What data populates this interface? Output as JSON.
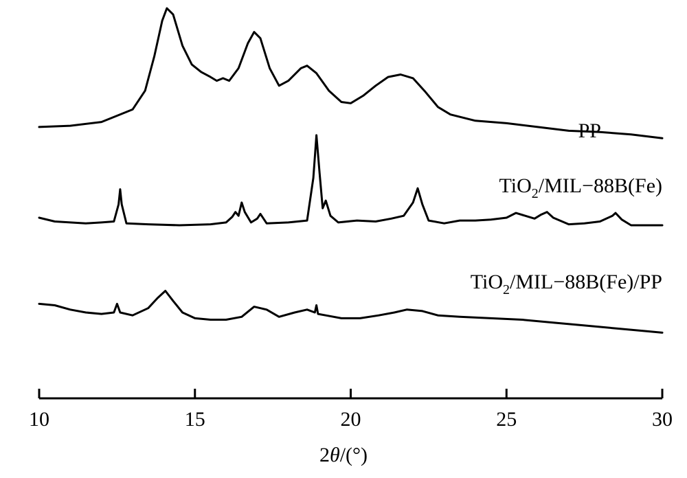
{
  "chart_data": {
    "type": "line",
    "xlabel_prefix": "2",
    "xlabel_symbol": "θ",
    "xlabel_suffix": "/(°)",
    "xlim": [
      10,
      30
    ],
    "x_ticks": [
      10,
      15,
      20,
      25,
      30
    ],
    "y_axis_shown": false,
    "grid": false,
    "legend": "none",
    "series": [
      {
        "name": "PP",
        "label_parts": {
          "pre": "PP",
          "sub": "",
          "post": ""
        },
        "points": [
          [
            10.0,
            0.05
          ],
          [
            11.0,
            0.06
          ],
          [
            12.0,
            0.09
          ],
          [
            12.5,
            0.14
          ],
          [
            13.0,
            0.19
          ],
          [
            13.4,
            0.34
          ],
          [
            13.7,
            0.62
          ],
          [
            13.95,
            0.9
          ],
          [
            14.1,
            1.0
          ],
          [
            14.3,
            0.95
          ],
          [
            14.6,
            0.7
          ],
          [
            14.9,
            0.55
          ],
          [
            15.2,
            0.49
          ],
          [
            15.5,
            0.45
          ],
          [
            15.7,
            0.42
          ],
          [
            15.9,
            0.44
          ],
          [
            16.1,
            0.42
          ],
          [
            16.4,
            0.52
          ],
          [
            16.7,
            0.72
          ],
          [
            16.9,
            0.81
          ],
          [
            17.1,
            0.76
          ],
          [
            17.4,
            0.52
          ],
          [
            17.7,
            0.38
          ],
          [
            18.0,
            0.42
          ],
          [
            18.4,
            0.52
          ],
          [
            18.6,
            0.54
          ],
          [
            18.9,
            0.48
          ],
          [
            19.3,
            0.34
          ],
          [
            19.7,
            0.25
          ],
          [
            20.0,
            0.24
          ],
          [
            20.4,
            0.3
          ],
          [
            20.8,
            0.38
          ],
          [
            21.2,
            0.45
          ],
          [
            21.6,
            0.47
          ],
          [
            22.0,
            0.44
          ],
          [
            22.4,
            0.33
          ],
          [
            22.8,
            0.21
          ],
          [
            23.2,
            0.15
          ],
          [
            24.0,
            0.1
          ],
          [
            25.0,
            0.08
          ],
          [
            26.0,
            0.05
          ],
          [
            27.0,
            0.02
          ],
          [
            28.0,
            0.01
          ],
          [
            29.0,
            -0.01
          ],
          [
            30.0,
            -0.04
          ]
        ]
      },
      {
        "name": "TiO2/MIL−88B(Fe)",
        "label_parts": {
          "pre": "TiO",
          "sub": "2",
          "post": "/MIL−88B(Fe)"
        },
        "points": [
          [
            10.0,
            0.08
          ],
          [
            10.5,
            0.04
          ],
          [
            11.0,
            0.03
          ],
          [
            11.5,
            0.02
          ],
          [
            12.0,
            0.03
          ],
          [
            12.4,
            0.04
          ],
          [
            12.55,
            0.22
          ],
          [
            12.6,
            0.38
          ],
          [
            12.65,
            0.22
          ],
          [
            12.8,
            0.02
          ],
          [
            13.5,
            0.01
          ],
          [
            14.5,
            0.0
          ],
          [
            15.5,
            0.01
          ],
          [
            16.0,
            0.03
          ],
          [
            16.2,
            0.09
          ],
          [
            16.3,
            0.14
          ],
          [
            16.4,
            0.1
          ],
          [
            16.5,
            0.24
          ],
          [
            16.6,
            0.14
          ],
          [
            16.8,
            0.03
          ],
          [
            17.0,
            0.07
          ],
          [
            17.1,
            0.12
          ],
          [
            17.3,
            0.02
          ],
          [
            18.0,
            0.03
          ],
          [
            18.6,
            0.05
          ],
          [
            18.8,
            0.5
          ],
          [
            18.9,
            0.95
          ],
          [
            19.0,
            0.55
          ],
          [
            19.1,
            0.18
          ],
          [
            19.2,
            0.26
          ],
          [
            19.35,
            0.1
          ],
          [
            19.6,
            0.03
          ],
          [
            20.2,
            0.05
          ],
          [
            20.8,
            0.04
          ],
          [
            21.3,
            0.07
          ],
          [
            21.7,
            0.1
          ],
          [
            22.0,
            0.24
          ],
          [
            22.15,
            0.39
          ],
          [
            22.3,
            0.22
          ],
          [
            22.5,
            0.05
          ],
          [
            23.0,
            0.02
          ],
          [
            23.5,
            0.05
          ],
          [
            24.0,
            0.05
          ],
          [
            24.5,
            0.06
          ],
          [
            25.0,
            0.08
          ],
          [
            25.3,
            0.13
          ],
          [
            25.6,
            0.1
          ],
          [
            25.9,
            0.07
          ],
          [
            26.1,
            0.11
          ],
          [
            26.3,
            0.14
          ],
          [
            26.5,
            0.08
          ],
          [
            27.0,
            0.01
          ],
          [
            27.5,
            0.02
          ],
          [
            28.0,
            0.04
          ],
          [
            28.4,
            0.1
          ],
          [
            28.5,
            0.13
          ],
          [
            28.7,
            0.06
          ],
          [
            29.0,
            0.0
          ],
          [
            30.0,
            0.0
          ]
        ]
      },
      {
        "name": "TiO2/MIL−88B(Fe)/PP",
        "label_parts": {
          "pre": "TiO",
          "sub": "2",
          "post": "/MIL−88B(Fe)/PP"
        },
        "points": [
          [
            10.0,
            0.06
          ],
          [
            10.5,
            0.05
          ],
          [
            11.0,
            0.02
          ],
          [
            11.5,
            0.0
          ],
          [
            12.0,
            -0.01
          ],
          [
            12.4,
            0.0
          ],
          [
            12.5,
            0.06
          ],
          [
            12.6,
            0.0
          ],
          [
            13.0,
            -0.02
          ],
          [
            13.5,
            0.03
          ],
          [
            13.8,
            0.1
          ],
          [
            14.05,
            0.15
          ],
          [
            14.3,
            0.08
          ],
          [
            14.6,
            0.0
          ],
          [
            15.0,
            -0.04
          ],
          [
            15.5,
            -0.05
          ],
          [
            16.0,
            -0.05
          ],
          [
            16.5,
            -0.03
          ],
          [
            16.9,
            0.04
          ],
          [
            17.3,
            0.02
          ],
          [
            17.7,
            -0.03
          ],
          [
            18.2,
            0.0
          ],
          [
            18.6,
            0.02
          ],
          [
            18.85,
            0.0
          ],
          [
            18.9,
            0.05
          ],
          [
            18.95,
            -0.01
          ],
          [
            19.2,
            -0.02
          ],
          [
            19.7,
            -0.04
          ],
          [
            20.3,
            -0.04
          ],
          [
            20.9,
            -0.02
          ],
          [
            21.4,
            0.0
          ],
          [
            21.8,
            0.02
          ],
          [
            22.3,
            0.01
          ],
          [
            22.8,
            -0.02
          ],
          [
            23.5,
            -0.03
          ],
          [
            24.5,
            -0.04
          ],
          [
            25.5,
            -0.05
          ],
          [
            26.5,
            -0.07
          ],
          [
            27.5,
            -0.09
          ],
          [
            28.5,
            -0.11
          ],
          [
            29.5,
            -0.13
          ],
          [
            30.0,
            -0.14
          ]
        ]
      }
    ]
  }
}
